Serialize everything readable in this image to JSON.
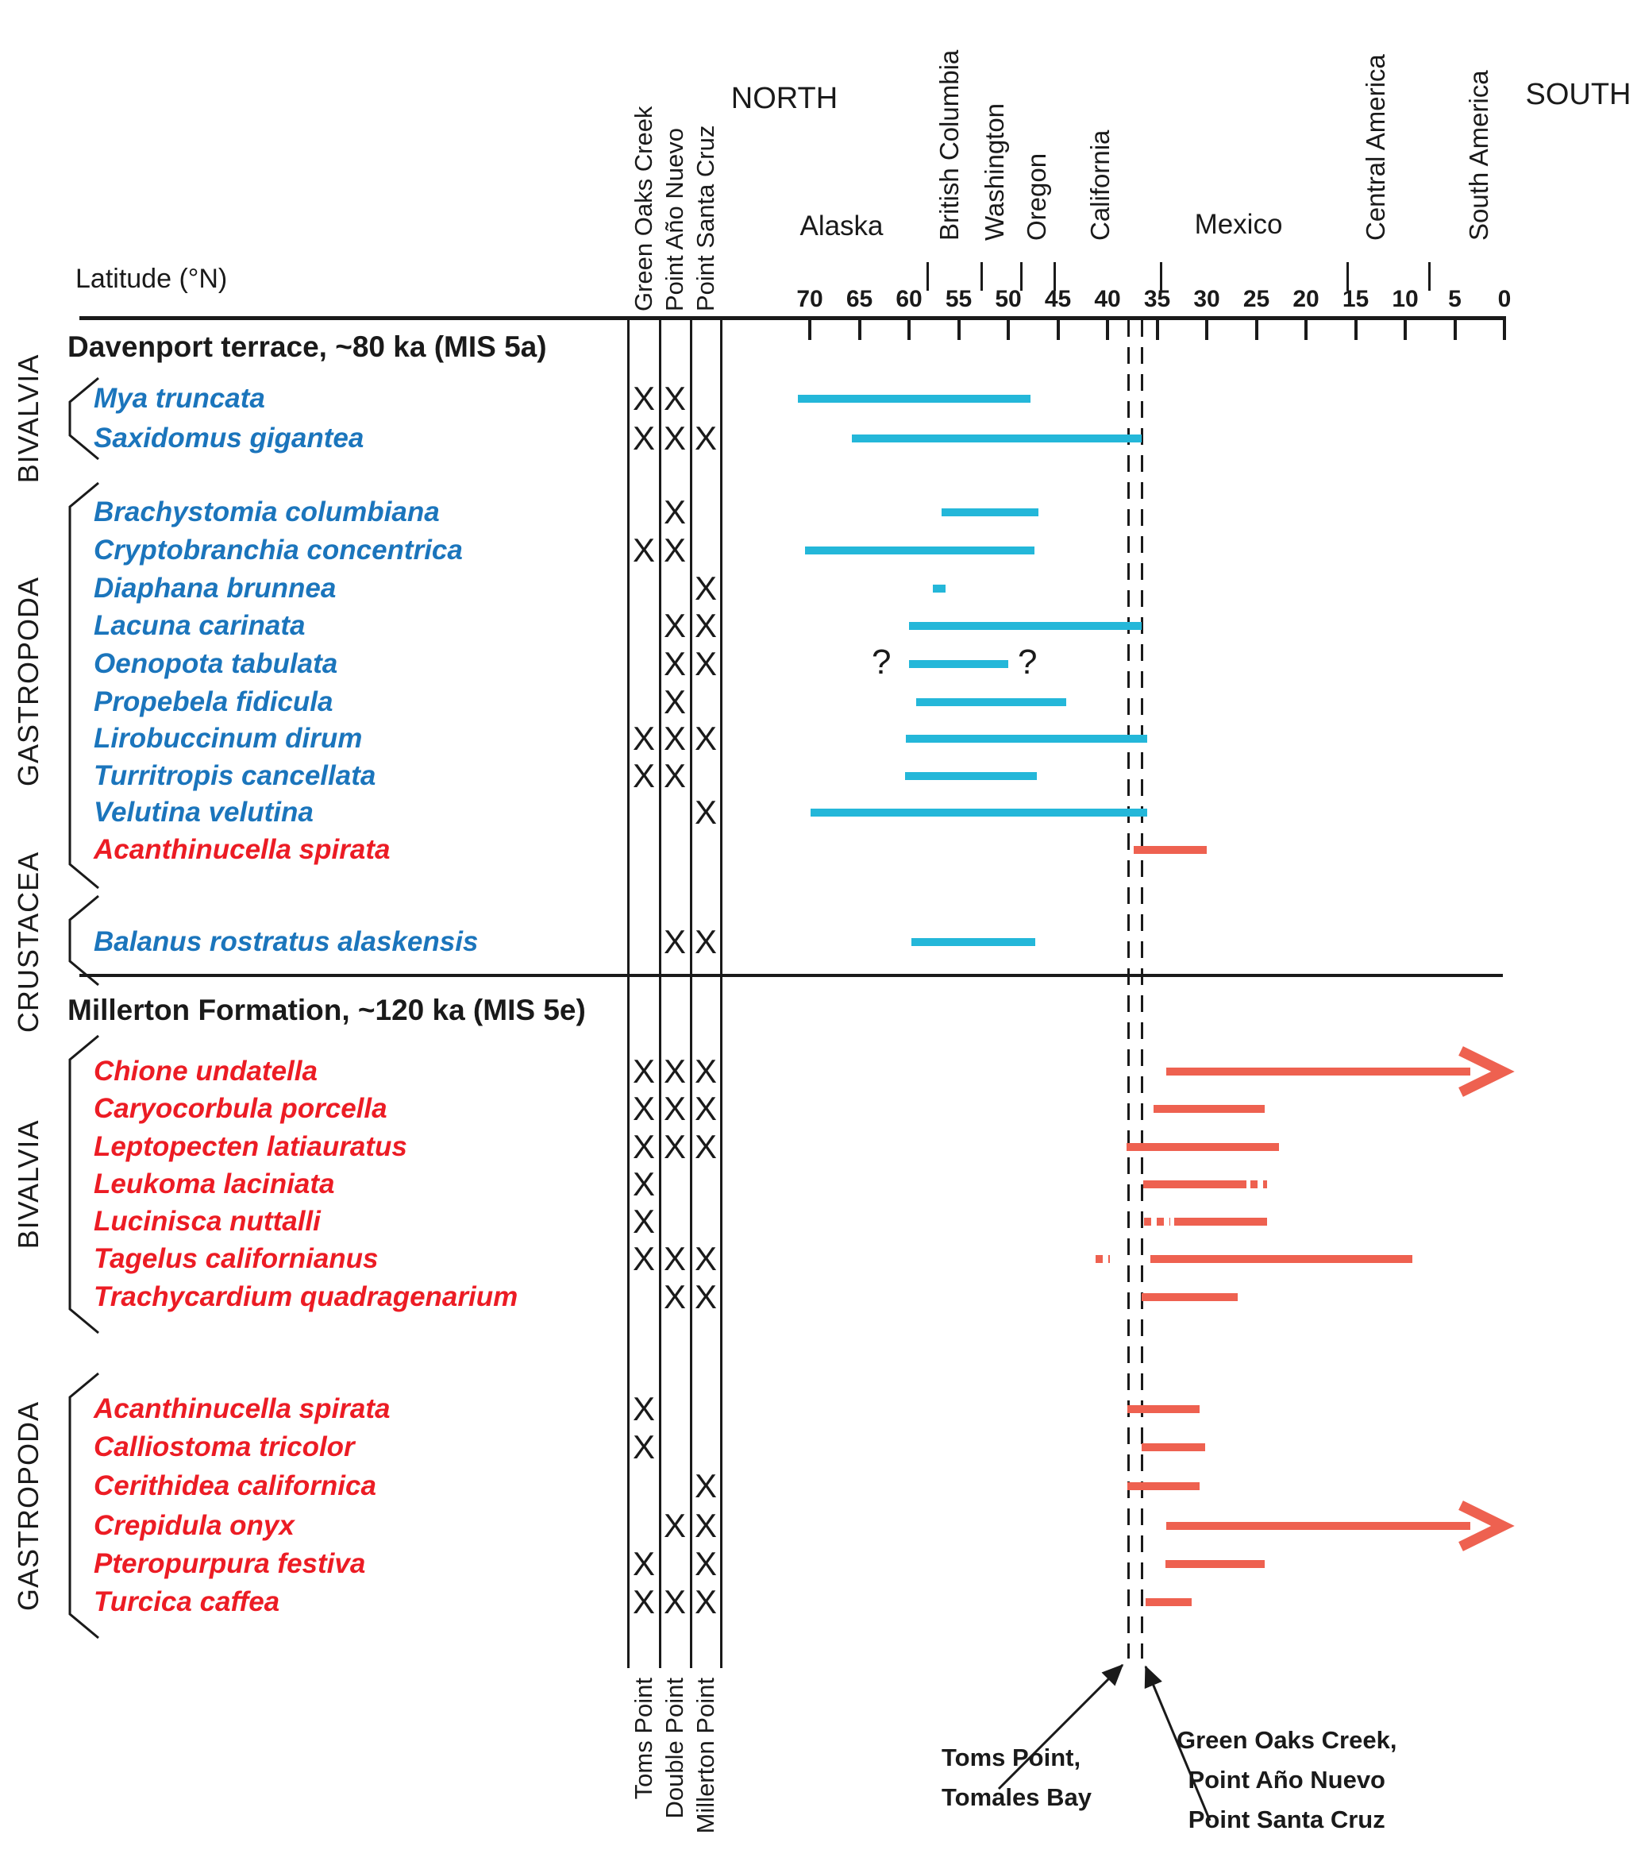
{
  "figure": {
    "north_label": "NORTH",
    "south_label": "SOUTH",
    "latitude_label": "Latitude (°N)",
    "annotation_left": [
      "Toms Point,",
      "Tomales Bay"
    ],
    "annotation_right": [
      "Green Oaks Creek,",
      "Point Año Nuevo",
      "Point Santa Cruz"
    ]
  },
  "colors": {
    "ink": "#1a1a1a",
    "northern_text": "#1b75bc",
    "southern_text": "#ec1c24",
    "northern_bar": "#24b7d9",
    "southern_bar": "#ee6150"
  },
  "chart_data": {
    "type": "bar",
    "subtype": "latitudinal-range-chart",
    "xlabel": "Latitude (°N)",
    "axis": {
      "min": 0,
      "max": 70,
      "step": 5,
      "direction": "north-left to south-right",
      "tick_labels": [
        "70",
        "65",
        "60",
        "55",
        "50",
        "45",
        "40",
        "35",
        "30",
        "25",
        "20",
        "15",
        "10",
        "5",
        "0"
      ]
    },
    "regions": [
      {
        "label": "Alaska",
        "lat": 66.8,
        "orientation": "horizontal"
      },
      {
        "label": "British Columbia",
        "lat": 55.9,
        "orientation": "vertical"
      },
      {
        "label": "Washington",
        "lat": 51.4,
        "orientation": "vertical"
      },
      {
        "label": "Oregon",
        "lat": 47.1,
        "orientation": "vertical"
      },
      {
        "label": "California",
        "lat": 40.7,
        "orientation": "vertical"
      },
      {
        "label": "Mexico",
        "lat": 26.8,
        "orientation": "horizontal"
      },
      {
        "label": "Central America",
        "lat": 13.0,
        "orientation": "vertical"
      },
      {
        "label": "South America",
        "lat": 2.6,
        "orientation": "vertical"
      }
    ],
    "region_boundaries_lat": [
      58.1,
      52.7,
      48.7,
      45.3,
      34.6,
      15.8,
      7.6
    ],
    "reference_lines": [
      {
        "lat": 37.9,
        "label": "Toms Point, Tomales Bay"
      },
      {
        "lat": 36.5,
        "label": "Green Oaks Creek, Point Año Nuevo, Point Santa Cruz"
      }
    ],
    "sections": [
      {
        "title": "Davenport terrace, ~80 ka (MIS 5a)",
        "sites": [
          "Green Oaks Creek",
          "Point Año Nuevo",
          "Point Santa Cruz"
        ],
        "groups": [
          {
            "label": "BIVALVIA",
            "first_species": 0,
            "last_species": 1
          },
          {
            "label": "GASTROPODA",
            "first_species": 2,
            "last_species": 11
          },
          {
            "label": "CRUSTACEA",
            "first_species": 12,
            "last_species": 12
          }
        ],
        "species": [
          {
            "name": "Mya truncata",
            "affinity": "northern",
            "site_occurrences": [
              1,
              1,
              0
            ],
            "range_lat": [
              71.2,
              47.8
            ]
          },
          {
            "name": "Saxidomus gigantea",
            "affinity": "northern",
            "site_occurrences": [
              1,
              1,
              1
            ],
            "range_lat": [
              65.8,
              36.6
            ]
          },
          {
            "name": "Brachystomia columbiana",
            "affinity": "northern",
            "site_occurrences": [
              0,
              1,
              0
            ],
            "range_lat": [
              56.7,
              47.0
            ]
          },
          {
            "name": "Cryptobranchia concentrica",
            "affinity": "northern",
            "site_occurrences": [
              1,
              1,
              0
            ],
            "range_lat": [
              70.5,
              47.4
            ]
          },
          {
            "name": "Diaphana brunnea",
            "affinity": "northern",
            "site_occurrences": [
              0,
              0,
              1
            ],
            "range_lat": [
              57.6,
              56.3
            ]
          },
          {
            "name": "Lacuna carinata",
            "affinity": "northern",
            "site_occurrences": [
              0,
              1,
              1
            ],
            "range_lat": [
              60.0,
              36.6
            ]
          },
          {
            "name": "Oenopota tabulata",
            "affinity": "northern",
            "site_occurrences": [
              0,
              1,
              1
            ],
            "range_lat": [
              60.0,
              50.0
            ],
            "uncertain_ends": true
          },
          {
            "name": "Propebela fidicula",
            "affinity": "northern",
            "site_occurrences": [
              0,
              1,
              0
            ],
            "range_lat": [
              59.3,
              44.2
            ]
          },
          {
            "name": "Lirobuccinum dirum",
            "affinity": "northern",
            "site_occurrences": [
              1,
              1,
              1
            ],
            "range_lat": [
              60.3,
              36.0
            ]
          },
          {
            "name": "Turritropis cancellata",
            "affinity": "northern",
            "site_occurrences": [
              1,
              1,
              0
            ],
            "range_lat": [
              60.4,
              47.1
            ]
          },
          {
            "name": "Velutina velutina",
            "affinity": "northern",
            "site_occurrences": [
              0,
              0,
              1
            ],
            "range_lat": [
              69.9,
              36.0
            ]
          },
          {
            "name": "Acanthinucella spirata",
            "affinity": "southern",
            "site_occurrences": [
              0,
              0,
              0
            ],
            "range_lat": [
              37.4,
              30.0
            ]
          },
          {
            "name": "Balanus rostratus alaskensis",
            "affinity": "northern",
            "site_occurrences": [
              0,
              1,
              1
            ],
            "range_lat": [
              59.8,
              47.3
            ]
          }
        ]
      },
      {
        "title": "Millerton Formation, ~120 ka (MIS 5e)",
        "sites": [
          "Toms Point",
          "Double Point",
          "Millerton Point"
        ],
        "groups": [
          {
            "label": "BIVALVIA",
            "first_species": 0,
            "last_species": 6
          },
          {
            "label": "GASTROPODA",
            "first_species": 7,
            "last_species": 12
          }
        ],
        "species": [
          {
            "name": "Chione undatella",
            "affinity": "southern",
            "site_occurrences": [
              1,
              1,
              1
            ],
            "range_lat": [
              34.1,
              0
            ],
            "arrow_south": true
          },
          {
            "name": "Caryocorbula porcella",
            "affinity": "southern",
            "site_occurrences": [
              1,
              1,
              1
            ],
            "range_lat": [
              35.4,
              24.2
            ]
          },
          {
            "name": "Leptopecten latiauratus",
            "affinity": "southern",
            "site_occurrences": [
              1,
              1,
              1
            ],
            "range_lat": [
              38.1,
              22.7
            ]
          },
          {
            "name": "Leukoma laciniata",
            "affinity": "southern",
            "site_occurrences": [
              1,
              0,
              0
            ],
            "range_lat": [
              36.4,
              26.0
            ],
            "dotted_south_lat": [
              25.6,
              23.9
            ]
          },
          {
            "name": "Lucinisca nuttalli",
            "affinity": "southern",
            "site_occurrences": [
              1,
              0,
              0
            ],
            "range_lat": [
              33.3,
              23.9
            ],
            "dotted_north_lat": [
              36.3,
              33.7
            ]
          },
          {
            "name": "Tagelus californianus",
            "affinity": "southern",
            "site_occurrences": [
              1,
              1,
              1
            ],
            "range_lat": [
              35.7,
              9.3
            ],
            "dotted_north_lat": [
              41.2,
              39.8
            ]
          },
          {
            "name": "Trachycardium quadragenarium",
            "affinity": "southern",
            "site_occurrences": [
              0,
              1,
              1
            ],
            "range_lat": [
              36.6,
              26.9
            ]
          },
          {
            "name": "Acanthinucella spirata",
            "affinity": "southern",
            "site_occurrences": [
              1,
              0,
              0
            ],
            "range_lat": [
              38.0,
              30.7
            ]
          },
          {
            "name": "Calliostoma tricolor",
            "affinity": "southern",
            "site_occurrences": [
              1,
              0,
              0
            ],
            "range_lat": [
              36.6,
              30.2
            ]
          },
          {
            "name": "Cerithidea californica",
            "affinity": "southern",
            "site_occurrences": [
              0,
              0,
              1
            ],
            "range_lat": [
              38.0,
              30.7
            ]
          },
          {
            "name": "Crepidula onyx",
            "affinity": "southern",
            "site_occurrences": [
              0,
              1,
              1
            ],
            "range_lat": [
              34.1,
              0
            ],
            "arrow_south": true
          },
          {
            "name": "Pteropurpura festiva",
            "affinity": "southern",
            "site_occurrences": [
              1,
              0,
              1
            ],
            "range_lat": [
              34.2,
              24.2
            ]
          },
          {
            "name": "Turcica caffea",
            "affinity": "southern",
            "site_occurrences": [
              1,
              1,
              1
            ],
            "range_lat": [
              36.2,
              31.5
            ]
          }
        ]
      }
    ]
  }
}
